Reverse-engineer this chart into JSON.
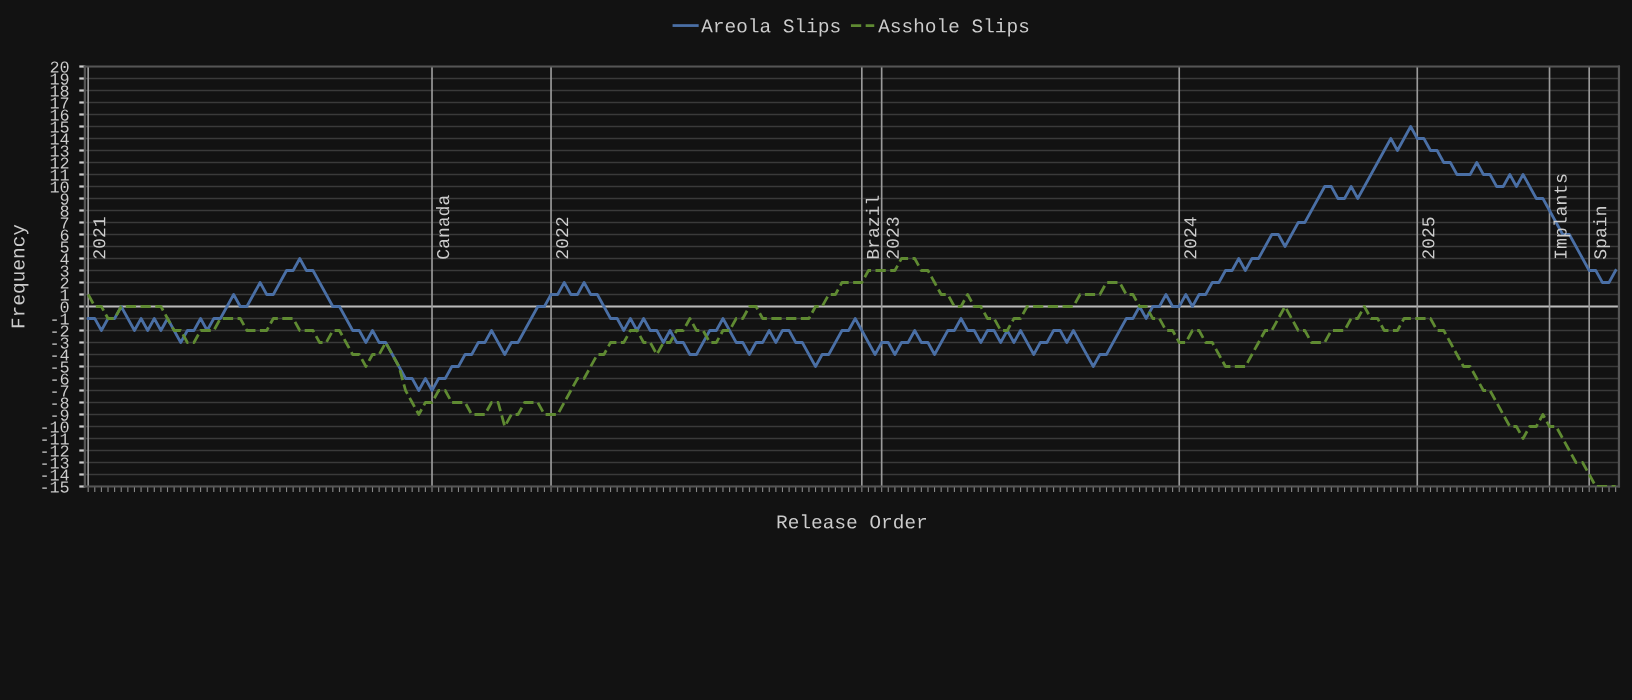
{
  "chart_data": {
    "type": "line",
    "xlabel": "Release Order",
    "ylabel": "Frequency",
    "categories": [
      null,
      null,
      null,
      null,
      null,
      null,
      null,
      null,
      null,
      null,
      null,
      null,
      null,
      null,
      null,
      null,
      null,
      null,
      null,
      null,
      null,
      null,
      null,
      null,
      null,
      null,
      null,
      null,
      null,
      null,
      null,
      null,
      null,
      null,
      null,
      null,
      null,
      null,
      null,
      null,
      null,
      null,
      null,
      null,
      null,
      null,
      null,
      null,
      null,
      null,
      null,
      null,
      null,
      null,
      null,
      null,
      null,
      null,
      null,
      null,
      null,
      null,
      null,
      null,
      null,
      null,
      null,
      null,
      null,
      null,
      null,
      null,
      null,
      null,
      null,
      null,
      null,
      null,
      null,
      null,
      null,
      null,
      null,
      null,
      null,
      null,
      null,
      null,
      null,
      null,
      null,
      null,
      null,
      null,
      null,
      null,
      null,
      null,
      null,
      null,
      null,
      null,
      null,
      null,
      null,
      null,
      null,
      null,
      null,
      null,
      null,
      null,
      null,
      null,
      null,
      null,
      null,
      null,
      null,
      null,
      null,
      null,
      null,
      null,
      null,
      null,
      null,
      null,
      null,
      null,
      null,
      null,
      null,
      null,
      null,
      null,
      null,
      null,
      null,
      null,
      null,
      null,
      null,
      null,
      null,
      null,
      null,
      null,
      null,
      null,
      null,
      null,
      null,
      null,
      null,
      null,
      null,
      null,
      null,
      null,
      null,
      null,
      null,
      null,
      null,
      null,
      null,
      null,
      null,
      null,
      null,
      null,
      null,
      null,
      null,
      null,
      null,
      null,
      null,
      null,
      null,
      null,
      null,
      null,
      null,
      null,
      null,
      null,
      null,
      null,
      null,
      null,
      null,
      null,
      null,
      null,
      null,
      null,
      null,
      null,
      null,
      null,
      null,
      null,
      null,
      null,
      null,
      null,
      null,
      null,
      null,
      null,
      null,
      null,
      null,
      null,
      null,
      null,
      null,
      null,
      null,
      null,
      null,
      null,
      null,
      null,
      null,
      null,
      null,
      null,
      null,
      null
    ],
    "ylim": [
      -15,
      20
    ],
    "yticks": [
      -15,
      -14,
      -13,
      -12,
      -11,
      -10,
      -9,
      -8,
      -7,
      -6,
      -5,
      -4,
      -3,
      -2,
      -1,
      0,
      1,
      2,
      3,
      4,
      5,
      6,
      7,
      8,
      9,
      10,
      11,
      12,
      13,
      14,
      15,
      16,
      17,
      18,
      19,
      20
    ],
    "tick_labels": "y",
    "grid": "y",
    "legend": "top",
    "marker": "none",
    "series": [
      {
        "name": "Areola Slips",
        "color": "#4a6fa5",
        "line_style": "solid",
        "values": [
          -1,
          -1,
          -2,
          -1,
          -1,
          0,
          -1,
          -2,
          -1,
          -2,
          -1,
          -2,
          -1,
          -2,
          -3,
          -2,
          -2,
          -1,
          -2,
          -1,
          -1,
          0,
          1,
          0,
          0,
          1,
          2,
          1,
          1,
          2,
          3,
          3,
          4,
          3,
          3,
          2,
          1,
          0,
          0,
          -1,
          -2,
          -2,
          -3,
          -2,
          -3,
          -3,
          -4,
          -5,
          -6,
          -6,
          -7,
          -6,
          -7,
          -6,
          -6,
          -5,
          -5,
          -4,
          -4,
          -3,
          -3,
          -2,
          -3,
          -4,
          -3,
          -3,
          -2,
          -1,
          0,
          0,
          1,
          1,
          2,
          1,
          1,
          2,
          1,
          1,
          0,
          -1,
          -1,
          -2,
          -1,
          -2,
          -1,
          -2,
          -2,
          -3,
          -2,
          -3,
          -3,
          -4,
          -4,
          -3,
          -2,
          -2,
          -1,
          -2,
          -3,
          -3,
          -4,
          -3,
          -3,
          -2,
          -3,
          -2,
          -2,
          -3,
          -3,
          -4,
          -5,
          -4,
          -4,
          -3,
          -2,
          -2,
          -1,
          -2,
          -3,
          -4,
          -3,
          -3,
          -4,
          -3,
          -3,
          -2,
          -3,
          -3,
          -4,
          -3,
          -2,
          -2,
          -1,
          -2,
          -2,
          -3,
          -2,
          -2,
          -3,
          -2,
          -3,
          -2,
          -3,
          -4,
          -3,
          -3,
          -2,
          -2,
          -3,
          -2,
          -3,
          -4,
          -5,
          -4,
          -4,
          -3,
          -2,
          -1,
          -1,
          0,
          -1,
          0,
          0,
          1,
          0,
          0,
          1,
          0,
          1,
          1,
          2,
          2,
          3,
          3,
          4,
          3,
          4,
          4,
          5,
          6,
          6,
          5,
          6,
          7,
          7,
          8,
          9,
          10,
          10,
          9,
          9,
          10,
          9,
          10,
          11,
          12,
          13,
          14,
          13,
          14,
          15,
          14,
          14,
          13,
          13,
          12,
          12,
          11,
          11,
          11,
          12,
          11,
          11,
          10,
          10,
          11,
          10,
          11,
          10,
          9,
          9,
          8,
          7,
          6,
          6,
          5,
          4,
          3,
          3,
          2,
          2,
          3
        ]
      },
      {
        "name": "Asshole Slips",
        "color": "#5f8a32",
        "line_style": "dashed",
        "values": [
          1,
          0,
          0,
          -1,
          -1,
          0,
          0,
          0,
          0,
          0,
          0,
          0,
          -1,
          -2,
          -2,
          -3,
          -3,
          -2,
          -2,
          -2,
          -1,
          -1,
          -1,
          -1,
          -2,
          -2,
          -2,
          -2,
          -1,
          -1,
          -1,
          -1,
          -2,
          -2,
          -2,
          -3,
          -3,
          -2,
          -2,
          -3,
          -4,
          -4,
          -5,
          -4,
          -4,
          -3,
          -4,
          -5,
          -7,
          -8,
          -9,
          -8,
          -8,
          -7,
          -7,
          -8,
          -8,
          -8,
          -9,
          -9,
          -9,
          -8,
          -8,
          -10,
          -9,
          -9,
          -8,
          -8,
          -8,
          -9,
          -9,
          -9,
          -8,
          -7,
          -6,
          -6,
          -5,
          -4,
          -4,
          -3,
          -3,
          -3,
          -2,
          -2,
          -3,
          -3,
          -4,
          -3,
          -3,
          -2,
          -2,
          -1,
          -2,
          -2,
          -3,
          -3,
          -2,
          -2,
          -1,
          -1,
          0,
          0,
          -1,
          -1,
          -1,
          -1,
          -1,
          -1,
          -1,
          -1,
          0,
          0,
          1,
          1,
          2,
          2,
          2,
          2,
          3,
          3,
          3,
          3,
          3,
          4,
          4,
          4,
          3,
          3,
          2,
          1,
          1,
          0,
          0,
          1,
          0,
          0,
          -1,
          -1,
          -2,
          -2,
          -1,
          -1,
          0,
          0,
          0,
          0,
          0,
          0,
          0,
          0,
          1,
          1,
          1,
          1,
          2,
          2,
          2,
          1,
          1,
          0,
          0,
          -1,
          -1,
          -2,
          -2,
          -3,
          -3,
          -2,
          -2,
          -3,
          -3,
          -4,
          -5,
          -5,
          -5,
          -5,
          -4,
          -3,
          -2,
          -2,
          -1,
          0,
          -1,
          -2,
          -2,
          -3,
          -3,
          -3,
          -2,
          -2,
          -2,
          -1,
          -1,
          0,
          -1,
          -1,
          -2,
          -2,
          -2,
          -1,
          -1,
          -1,
          -1,
          -1,
          -2,
          -2,
          -3,
          -4,
          -5,
          -5,
          -6,
          -7,
          -7,
          -8,
          -9,
          -10,
          -10,
          -11,
          -10,
          -10,
          -9,
          -10,
          -10,
          -11,
          -12,
          -13,
          -13,
          -14,
          -15,
          -15,
          -15,
          -15
        ]
      }
    ],
    "annotations": [
      "2021",
      "Canada",
      "2022",
      "Brazil",
      "2023",
      "2024",
      "2025",
      "Implants",
      "Spain"
    ],
    "ref_lines": [
      {
        "axis": "y",
        "value": 0,
        "label": null,
        "color": "#bbbbbb"
      }
    ]
  }
}
